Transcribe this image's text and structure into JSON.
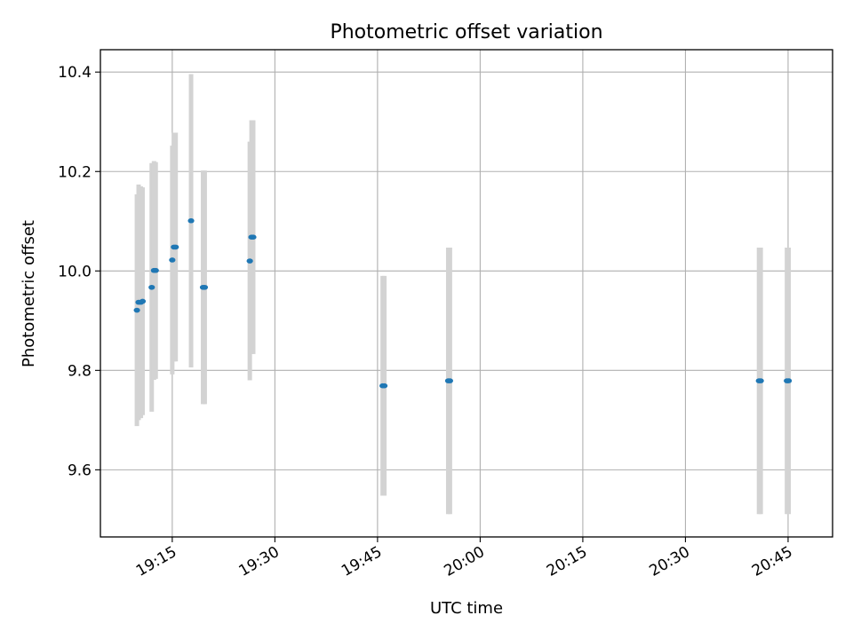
{
  "chart_data": {
    "type": "scatter",
    "title": "Photometric offset variation",
    "xlabel": "UTC time",
    "ylabel": "Photometric offset",
    "x_axis": "time",
    "xlim": [
      "19:04:30",
      "20:51:30"
    ],
    "ylim": [
      9.465,
      10.445
    ],
    "x_ticks": [
      "19:15",
      "19:30",
      "19:45",
      "20:00",
      "20:15",
      "20:30",
      "20:45"
    ],
    "y_ticks": [
      9.6,
      9.8,
      10.0,
      10.2,
      10.4
    ],
    "grid": true,
    "marker_color": "#1f77b4",
    "errorbar_color": "#d3d3d3",
    "points": [
      {
        "x": "19:09:50",
        "y": 9.921,
        "yerr": 0.233
      },
      {
        "x": "19:10:05",
        "y": 9.937,
        "yerr": 0.237
      },
      {
        "x": "19:10:25",
        "y": 9.937,
        "yerr": 0.233
      },
      {
        "x": "19:10:40",
        "y": 9.939,
        "yerr": 0.229
      },
      {
        "x": "19:12:00",
        "y": 9.967,
        "yerr": 0.25
      },
      {
        "x": "19:12:20",
        "y": 10.001,
        "yerr": 0.22
      },
      {
        "x": "19:12:35",
        "y": 10.001,
        "yerr": 0.218
      },
      {
        "x": "19:15:00",
        "y": 10.022,
        "yerr": 0.23
      },
      {
        "x": "19:15:15",
        "y": 10.048,
        "yerr": 0.23
      },
      {
        "x": "19:15:30",
        "y": 10.048,
        "yerr": 0.23
      },
      {
        "x": "19:17:45",
        "y": 10.101,
        "yerr": 0.295
      },
      {
        "x": "19:19:30",
        "y": 9.967,
        "yerr": 0.235
      },
      {
        "x": "19:19:45",
        "y": 9.967,
        "yerr": 0.235
      },
      {
        "x": "19:26:20",
        "y": 10.02,
        "yerr": 0.24
      },
      {
        "x": "19:26:35",
        "y": 10.068,
        "yerr": 0.235
      },
      {
        "x": "19:26:50",
        "y": 10.068,
        "yerr": 0.235
      },
      {
        "x": "19:45:45",
        "y": 9.769,
        "yerr": 0.221
      },
      {
        "x": "19:46:00",
        "y": 9.769,
        "yerr": 0.221
      },
      {
        "x": "19:55:20",
        "y": 9.779,
        "yerr": 0.268
      },
      {
        "x": "19:55:35",
        "y": 9.779,
        "yerr": 0.268
      },
      {
        "x": "20:40:45",
        "y": 9.779,
        "yerr": 0.268
      },
      {
        "x": "20:41:00",
        "y": 9.779,
        "yerr": 0.268
      },
      {
        "x": "20:44:50",
        "y": 9.779,
        "yerr": 0.268
      },
      {
        "x": "20:45:05",
        "y": 9.779,
        "yerr": 0.268
      }
    ]
  }
}
